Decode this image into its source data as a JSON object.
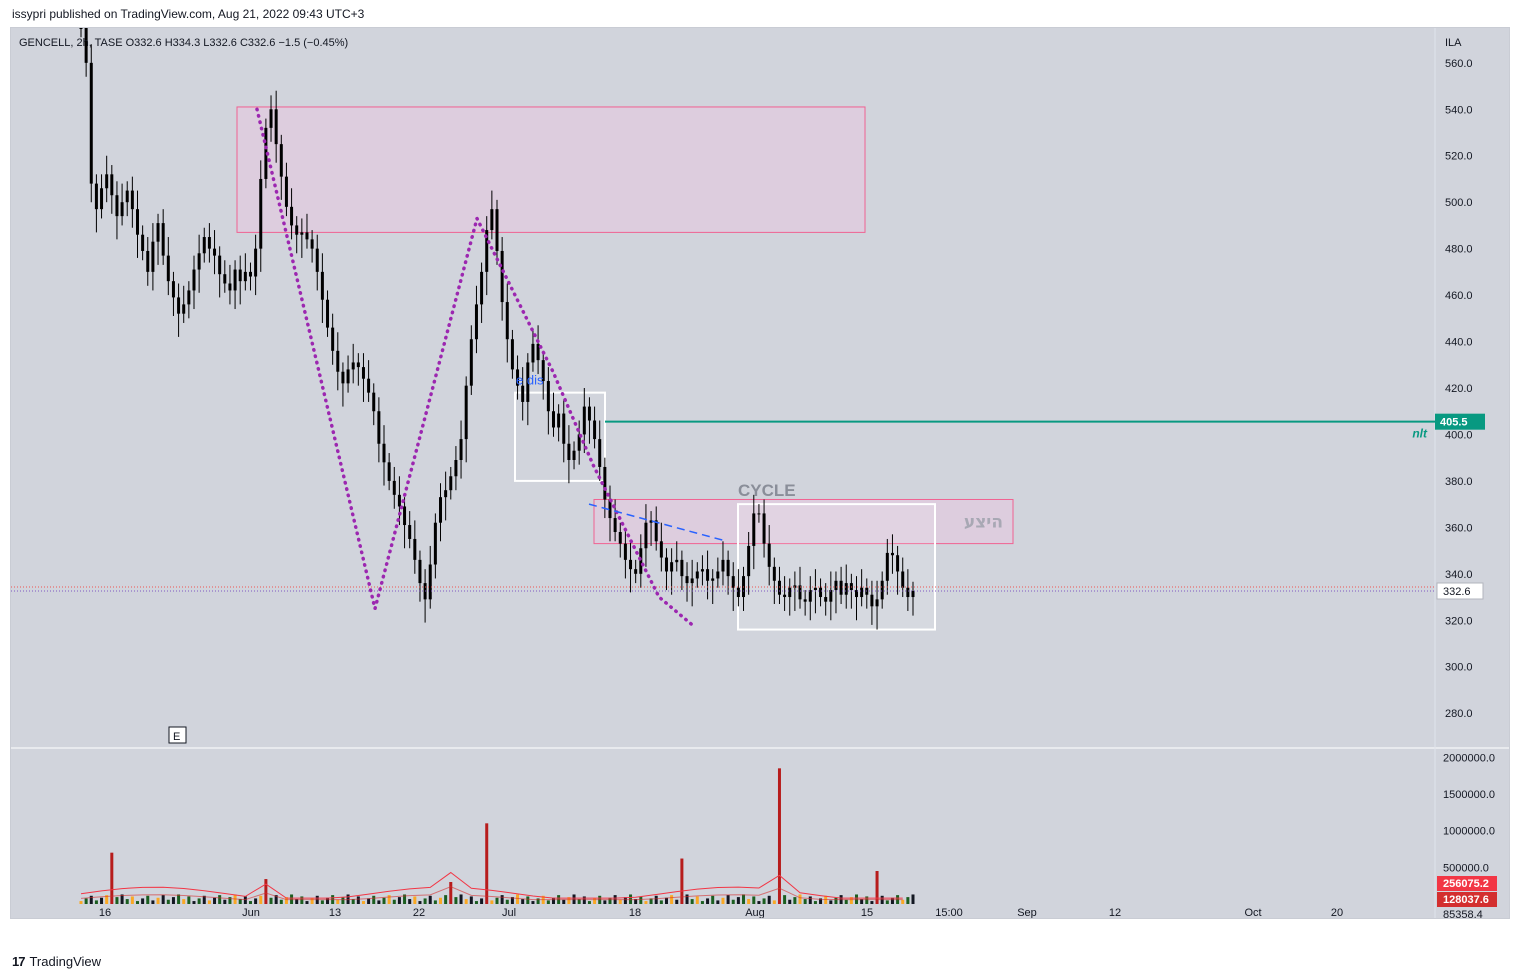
{
  "header": {
    "publisher_text": "issypri published on TradingView.com, Aug 21, 2022 09:43 UTC+3",
    "ohlc_text": "GENCELL, 2h, TASE  O332.6  H334.3  L332.6  C332.6  −1.5 (−0.45%)"
  },
  "footer": {
    "brand": "TradingView",
    "logo_glyph": "17"
  },
  "colors": {
    "panel_bg": "#d1d4dc",
    "candle": "#000000",
    "zone_fill": "#e9c6df",
    "zone_border": "#f06292",
    "cycle_border": "#ffffff",
    "pattern_dots": "#9c27b0",
    "dashed_trend": "#2962ff",
    "level_line": "#089981",
    "volume_ma": "#f23645"
  },
  "chart_data": {
    "type": "candlestick",
    "symbol": "GENCELL",
    "interval": "2h",
    "exchange": "TASE",
    "currency_label": "ILA",
    "ylim": [
      265,
      575
    ],
    "y_ticks": [
      "560.0",
      "540.0",
      "520.0",
      "500.0",
      "480.0",
      "460.0",
      "440.0",
      "420.0",
      "400.0",
      "380.0",
      "360.0",
      "340.0",
      "320.0",
      "300.0",
      "280.0"
    ],
    "x_ticks": [
      "16",
      "Jun",
      "13",
      "22",
      "Jul",
      "18",
      "Aug",
      "15",
      "15:00",
      "Sep",
      "12",
      "Oct",
      "20"
    ],
    "close_series": [
      575,
      560,
      508,
      497,
      506,
      512,
      503,
      494,
      500,
      505,
      497,
      486,
      479,
      470,
      483,
      491,
      477,
      466,
      459,
      452,
      456,
      462,
      471,
      478,
      485,
      480,
      477,
      469,
      465,
      462,
      471,
      466,
      470,
      468,
      480,
      510,
      532,
      540,
      525,
      511,
      498,
      490,
      486,
      487,
      484,
      480,
      470,
      458,
      446,
      436,
      427,
      422,
      428,
      431,
      429,
      424,
      418,
      410,
      396,
      388,
      380,
      374,
      369,
      361,
      355,
      346,
      336,
      329,
      344,
      362,
      373,
      376,
      382,
      389,
      398,
      421,
      441,
      456,
      470,
      488,
      497,
      479,
      457,
      441,
      428,
      421,
      414,
      431,
      439,
      432,
      423,
      410,
      403,
      409,
      396,
      389,
      393,
      400,
      412,
      406,
      398,
      386,
      372,
      364,
      358,
      353,
      346,
      342,
      340,
      351,
      362,
      363,
      354,
      347,
      341,
      345,
      346,
      339,
      336,
      338,
      341,
      342,
      337,
      338,
      341,
      346,
      339,
      334,
      330,
      339,
      352,
      366,
      366,
      353,
      343,
      337,
      331,
      330,
      334,
      335,
      329,
      328,
      333,
      334,
      330,
      328,
      333,
      337,
      331,
      336,
      333,
      330,
      334,
      331,
      326,
      329,
      337,
      349,
      348,
      341,
      334,
      330,
      332.6
    ],
    "price_line": {
      "value": 332.6,
      "label": "332.6"
    },
    "horizontal_level": {
      "value": 405.5,
      "label": "405.5",
      "name": "nlt"
    },
    "zones": [
      {
        "from": "Jun",
        "to": "Aug",
        "top": 541,
        "bottom": 487
      },
      {
        "from": "Jul",
        "to": "Aug",
        "top": 372,
        "bottom": 353,
        "label": "היצע"
      }
    ],
    "boxes": [
      {
        "name": "e-dis-box",
        "top": 418,
        "bottom": 380
      },
      {
        "name": "cycle-box",
        "top": 370,
        "bottom": 316,
        "label": "CYCLE"
      }
    ],
    "annotations": {
      "e_dis": "e dis",
      "cycle": "CYCLE",
      "earnings_marker": "E",
      "hebrew_zone": "היצע",
      "level_name": "nlt"
    },
    "volume": {
      "ylim": [
        0,
        2100000
      ],
      "y_ticks": [
        "2000000.0",
        "1500000.0",
        "1000000.0",
        "500000.0"
      ],
      "ma_labels": [
        "256075.2",
        "128037.6"
      ],
      "ma_colors": [
        "#f23645",
        "#d32f2f"
      ],
      "partial_tick": "85358.4",
      "spikes": [
        {
          "idx": 6,
          "value": 700000
        },
        {
          "idx": 36,
          "value": 340000
        },
        {
          "idx": 72,
          "value": 300000
        },
        {
          "idx": 79,
          "value": 1100000
        },
        {
          "idx": 117,
          "value": 620000
        },
        {
          "idx": 136,
          "value": 1850000
        },
        {
          "idx": 155,
          "value": 450000
        }
      ]
    }
  }
}
